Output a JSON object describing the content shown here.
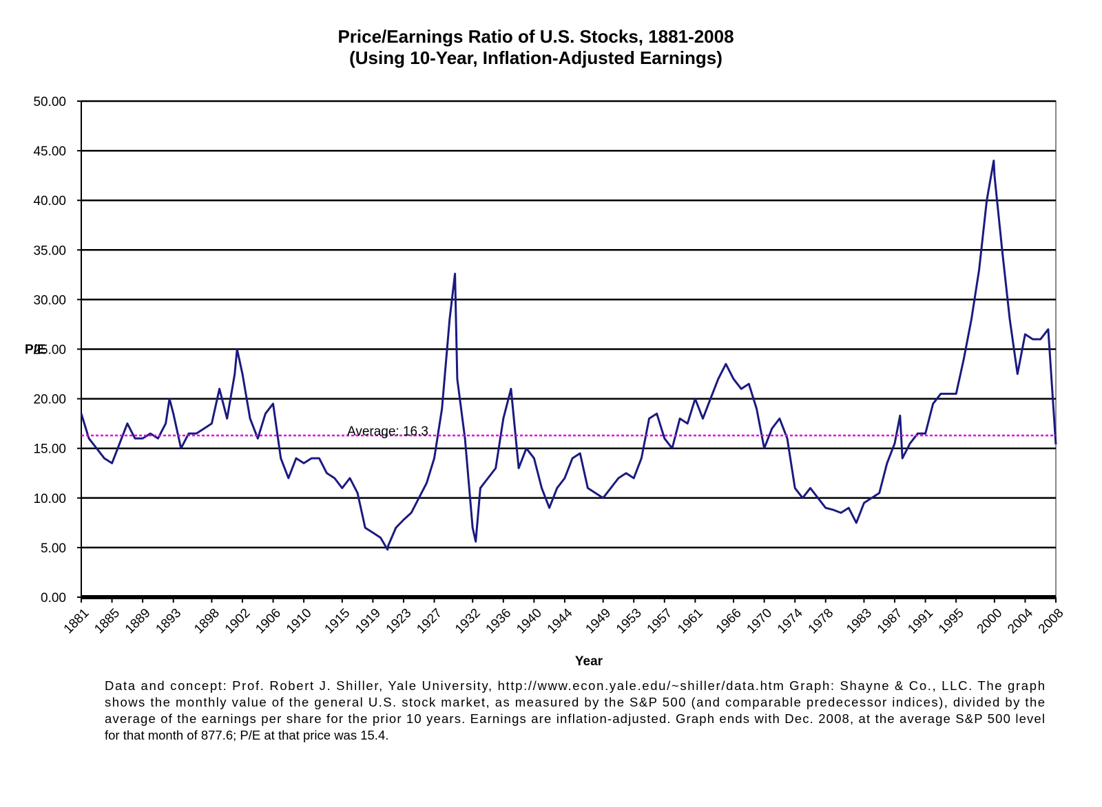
{
  "chart_data": {
    "type": "line",
    "title": [
      "Price/Earnings Ratio of U.S. Stocks, 1881-2008",
      "(Using 10-Year, Inflation-Adjusted Earnings)"
    ],
    "x_label": "Year",
    "y_label": "P/E",
    "footnote": [
      "Data and concept:  Prof. Robert J. Shiller, Yale University, http://www.econ.yale.edu/~shiller/data.htm  Graph:  Shayne & Co., LLC.  The graph",
      "shows the monthly value of the general U.S. stock market, as measured by the S&P 500 (and comparable predecessor indices), divided by the",
      "average of the earnings per share for the prior 10 years.  Earnings are inflation-adjusted.  Graph ends with Dec. 2008, at the average S&P 500 level",
      "for that month of 877.6; P/E at that price was 15.4."
    ],
    "average": {
      "value": 16.3,
      "label": "Average:  16.3",
      "color": "#e000e0"
    },
    "grid": true,
    "xlim": [
      1881,
      2008
    ],
    "xticks": [
      1881,
      1885,
      1889,
      1893,
      1898,
      1902,
      1906,
      1910,
      1915,
      1919,
      1923,
      1927,
      1932,
      1936,
      1940,
      1944,
      1949,
      1953,
      1957,
      1961,
      1966,
      1970,
      1974,
      1978,
      1983,
      1987,
      1991,
      1995,
      2000,
      2004,
      2008
    ],
    "ylim": [
      0,
      50
    ],
    "yticks": [
      {
        "value": 0,
        "label": "0.00"
      },
      {
        "value": 5,
        "label": "5.00"
      },
      {
        "value": 10,
        "label": "10.00"
      },
      {
        "value": 15,
        "label": "15.00"
      },
      {
        "value": 20,
        "label": "20.00"
      },
      {
        "value": 25,
        "label": "25.00"
      },
      {
        "value": 30,
        "label": "30.00"
      },
      {
        "value": 35,
        "label": "35.00"
      },
      {
        "value": 40,
        "label": "40.00"
      },
      {
        "value": 45,
        "label": "45.00"
      },
      {
        "value": 50,
        "label": "50.00"
      }
    ],
    "x": [
      1881,
      1882,
      1883,
      1884,
      1885,
      1886,
      1887,
      1888,
      1889,
      1890,
      1891,
      1892,
      1892.5,
      1893,
      1894,
      1895,
      1896,
      1897,
      1898,
      1899,
      1900,
      1901,
      1901.3,
      1902,
      1903,
      1904,
      1905,
      1906,
      1907,
      1908,
      1909,
      1910,
      1911,
      1912,
      1913,
      1914,
      1915,
      1916,
      1917,
      1918,
      1919,
      1920,
      1920.9,
      1921,
      1922,
      1923,
      1924,
      1925,
      1926,
      1927,
      1928,
      1929,
      1929.7,
      1930,
      1931,
      1932,
      1932.4,
      1933,
      1934,
      1935,
      1936,
      1937,
      1938,
      1939,
      1940,
      1941,
      1942,
      1943,
      1944,
      1945,
      1946,
      1947,
      1948,
      1949,
      1950,
      1951,
      1952,
      1953,
      1954,
      1955,
      1956,
      1957,
      1958,
      1959,
      1960,
      1961,
      1962,
      1963,
      1964,
      1965,
      1966,
      1967,
      1968,
      1969,
      1970,
      1971,
      1972,
      1973,
      1974,
      1975,
      1976,
      1977,
      1978,
      1979,
      1980,
      1981,
      1982,
      1983,
      1984,
      1985,
      1986,
      1987,
      1987.7,
      1988,
      1989,
      1990,
      1991,
      1992,
      1993,
      1994,
      1995,
      1996,
      1997,
      1998,
      1999,
      1999.9,
      2000,
      2001,
      2002,
      2003,
      2004,
      2005,
      2006,
      2007,
      2008
    ],
    "series": [
      {
        "name": "P/E",
        "color": "#1a1a80",
        "values": [
          18.5,
          16,
          15,
          14,
          13.5,
          15.5,
          17.5,
          16,
          16,
          16.5,
          16,
          17.5,
          20,
          18.5,
          15,
          16.5,
          16.5,
          17,
          17.5,
          21,
          18,
          22.5,
          25,
          22.5,
          18,
          16,
          18.5,
          19.5,
          14,
          12,
          14,
          13.5,
          14,
          14,
          12.5,
          12,
          11,
          12,
          10.5,
          7,
          6.5,
          6,
          4.8,
          5.2,
          7,
          7.8,
          8.5,
          10,
          11.5,
          14,
          19,
          28,
          32.6,
          22,
          16,
          7,
          5.6,
          11,
          12,
          13,
          18,
          21,
          13,
          15,
          14,
          11,
          9,
          11,
          12,
          14,
          14.5,
          11,
          10.5,
          10,
          11,
          12,
          12.5,
          12,
          14,
          18,
          18.5,
          16,
          15,
          18,
          17.5,
          20,
          18,
          20,
          22,
          23.5,
          22,
          21,
          21.5,
          19,
          15,
          17,
          18,
          16,
          11,
          10,
          11,
          10,
          9,
          8.8,
          8.5,
          9,
          7.5,
          9.5,
          10,
          10.5,
          13.5,
          15.5,
          18.3,
          14,
          15.5,
          16.5,
          16.5,
          19.5,
          20.5,
          20.5,
          20.5,
          24,
          28,
          33,
          40,
          44,
          42.5,
          35,
          28,
          22.5,
          26.5,
          26,
          26,
          27,
          15.4
        ]
      }
    ]
  }
}
